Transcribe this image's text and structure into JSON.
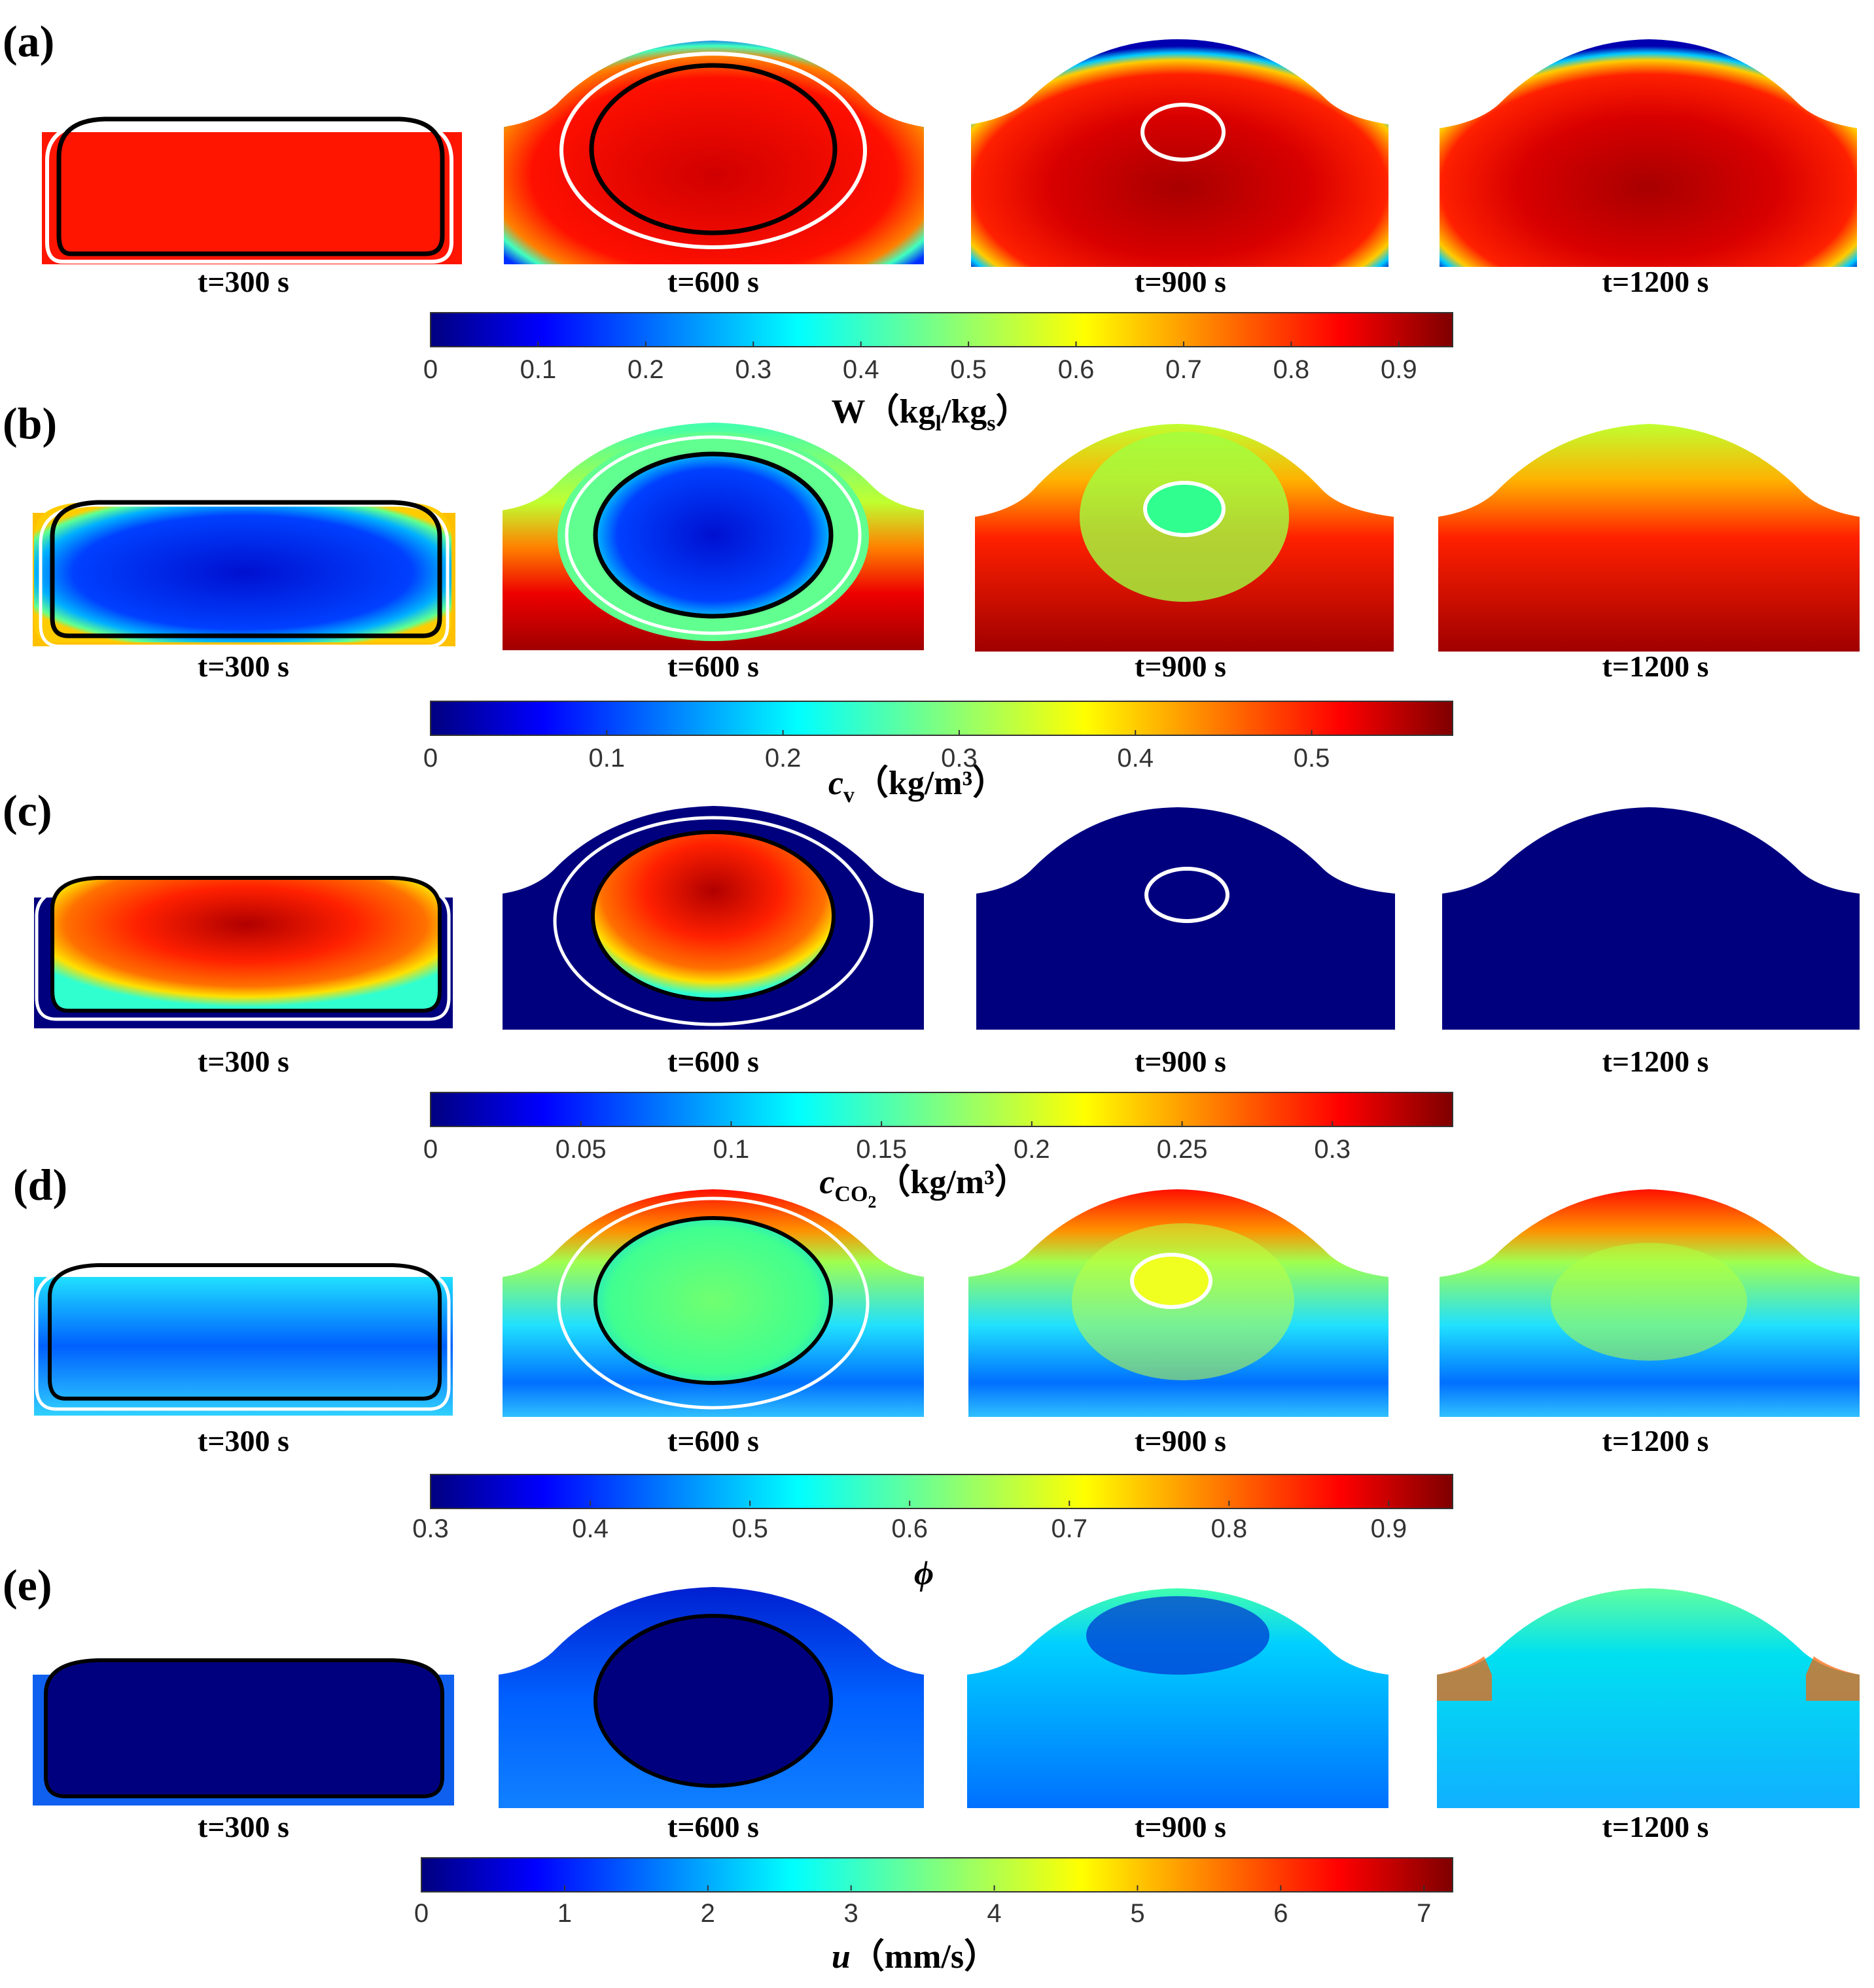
{
  "figure": {
    "rows": [
      {
        "id": "a",
        "label": "(a)",
        "times": [
          "t=300 s",
          "t=600 s",
          "t=900 s",
          "t=1200 s"
        ],
        "colorbar": {
          "ticks": [
            "0",
            "0.1",
            "0.2",
            "0.3",
            "0.4",
            "0.5",
            "0.6",
            "0.7",
            "0.8",
            "0.9"
          ],
          "title_main": "W",
          "title_open": "（kg",
          "title_sub1": "l",
          "title_mid": "/kg",
          "title_sub2": "s",
          "title_close": "）"
        }
      },
      {
        "id": "b",
        "label": "(b)",
        "times": [
          "t=300 s",
          "t=600 s",
          "t=900 s",
          "t=1200 s"
        ],
        "colorbar": {
          "ticks": [
            "0",
            "0.1",
            "0.2",
            "0.3",
            "0.4",
            "0.5"
          ],
          "title_main": "c",
          "title_sub1": "v",
          "title_rest": "（kg/m³）"
        }
      },
      {
        "id": "c",
        "label": "(c)",
        "times": [
          "t=300 s",
          "t=600 s",
          "t=900 s",
          "t=1200 s"
        ],
        "colorbar": {
          "ticks": [
            "0",
            "0.05",
            "0.1",
            "0.15",
            "0.2",
            "0.25",
            "0.3"
          ],
          "title_main": "c",
          "title_sub1": "CO",
          "title_sub2": "2",
          "title_rest": "（kg/m³）"
        }
      },
      {
        "id": "d",
        "label": "(d)",
        "times": [
          "t=300 s",
          "t=600 s",
          "t=900 s",
          "t=1200 s"
        ],
        "colorbar": {
          "ticks": [
            "0.3",
            "0.4",
            "0.5",
            "0.6",
            "0.7",
            "0.8",
            "0.9"
          ],
          "title_main": "ϕ"
        }
      },
      {
        "id": "e",
        "label": "(e)",
        "times": [
          "t=300 s",
          "t=600 s",
          "t=900 s",
          "t=1200 s"
        ],
        "colorbar": {
          "ticks": [
            "0",
            "1",
            "2",
            "3",
            "4",
            "5",
            "6",
            "7"
          ],
          "title_main": "u",
          "title_rest": "（mm/s）"
        }
      }
    ],
    "colormap": [
      "#00007f",
      "#0000ff",
      "#007fff",
      "#00ffff",
      "#7fff7f",
      "#ffff00",
      "#ff7f00",
      "#ff0000",
      "#7f0000"
    ]
  }
}
